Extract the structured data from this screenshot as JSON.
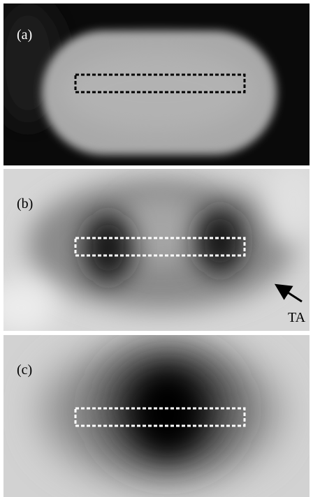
{
  "panels": [
    {
      "label": "(a)"
    },
    {
      "label": "(b)",
      "annotation": "TA"
    },
    {
      "label": "(c)"
    }
  ]
}
